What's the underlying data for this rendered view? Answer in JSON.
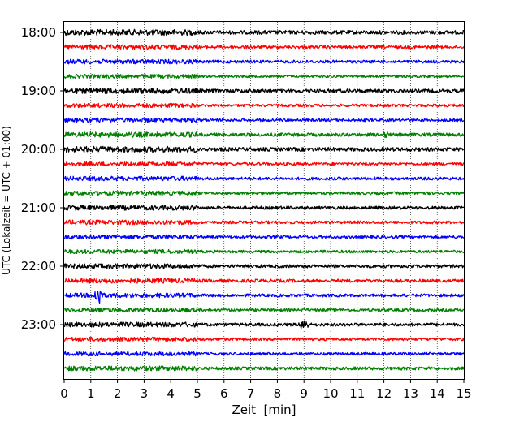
{
  "chart_data": {
    "type": "line",
    "title": "",
    "xlabel": "Zeit  [min]",
    "ylabel": "UTC (Lokalzeit = UTC + 01:00)",
    "xlim": [
      0,
      15
    ],
    "x_ticks": [
      "0",
      "1",
      "2",
      "3",
      "4",
      "5",
      "6",
      "7",
      "8",
      "9",
      "10",
      "11",
      "12",
      "13",
      "14",
      "15"
    ],
    "y_ticks": [
      {
        "label": "18:00",
        "trace": 0
      },
      {
        "label": "19:00",
        "trace": 4
      },
      {
        "label": "20:00",
        "trace": 8
      },
      {
        "label": "21:00",
        "trace": 12
      },
      {
        "label": "22:00",
        "trace": 16
      },
      {
        "label": "23:00",
        "trace": 20
      }
    ],
    "grid": "vertical dotted at each minute",
    "trace_minutes": 15,
    "color_cycle": [
      "#000000",
      "#ff0000",
      "#0000ff",
      "#008000"
    ],
    "traces": [
      {
        "start": "18:00",
        "color": "#000000",
        "amplitude": 3.6,
        "events": []
      },
      {
        "start": "18:15",
        "color": "#ff0000",
        "amplitude": 2.8,
        "events": []
      },
      {
        "start": "18:30",
        "color": "#0000ff",
        "amplitude": 2.8,
        "events": []
      },
      {
        "start": "18:45",
        "color": "#008000",
        "amplitude": 2.4,
        "events": []
      },
      {
        "start": "19:00",
        "color": "#000000",
        "amplitude": 3.4,
        "events": []
      },
      {
        "start": "19:15",
        "color": "#ff0000",
        "amplitude": 2.6,
        "events": []
      },
      {
        "start": "19:30",
        "color": "#0000ff",
        "amplitude": 2.6,
        "events": []
      },
      {
        "start": "19:45",
        "color": "#008000",
        "amplitude": 3.2,
        "events": [
          {
            "minute": 12.1,
            "amplitude": 5
          }
        ]
      },
      {
        "start": "20:00",
        "color": "#000000",
        "amplitude": 3.6,
        "events": []
      },
      {
        "start": "20:15",
        "color": "#ff0000",
        "amplitude": 2.6,
        "events": []
      },
      {
        "start": "20:30",
        "color": "#0000ff",
        "amplitude": 2.8,
        "events": []
      },
      {
        "start": "20:45",
        "color": "#008000",
        "amplitude": 2.6,
        "events": []
      },
      {
        "start": "21:00",
        "color": "#000000",
        "amplitude": 3.0,
        "events": []
      },
      {
        "start": "21:15",
        "color": "#ff0000",
        "amplitude": 2.8,
        "events": []
      },
      {
        "start": "21:30",
        "color": "#0000ff",
        "amplitude": 2.6,
        "events": []
      },
      {
        "start": "21:45",
        "color": "#008000",
        "amplitude": 2.6,
        "events": []
      },
      {
        "start": "22:00",
        "color": "#000000",
        "amplitude": 3.0,
        "events": []
      },
      {
        "start": "22:15",
        "color": "#ff0000",
        "amplitude": 3.0,
        "events": []
      },
      {
        "start": "22:30",
        "color": "#0000ff",
        "amplitude": 2.8,
        "events": [
          {
            "minute": 1.3,
            "amplitude": 15
          }
        ]
      },
      {
        "start": "22:45",
        "color": "#008000",
        "amplitude": 2.6,
        "events": []
      },
      {
        "start": "23:00",
        "color": "#000000",
        "amplitude": 3.0,
        "events": [
          {
            "minute": 9.0,
            "amplitude": 10
          }
        ]
      },
      {
        "start": "23:15",
        "color": "#ff0000",
        "amplitude": 2.6,
        "events": []
      },
      {
        "start": "23:30",
        "color": "#0000ff",
        "amplitude": 2.6,
        "events": []
      },
      {
        "start": "23:45",
        "color": "#008000",
        "amplitude": 3.0,
        "events": []
      }
    ]
  }
}
